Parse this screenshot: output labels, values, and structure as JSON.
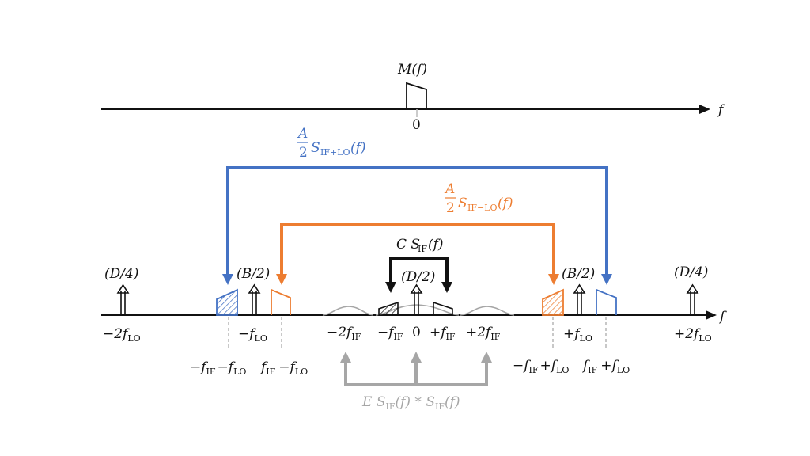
{
  "top_axis": {
    "spectrum_label": "M(f)",
    "zero_label": "0",
    "axis_label": "f"
  },
  "bottom_axis": {
    "axis_label": "f"
  },
  "labels": {
    "blue_coef_num": "A",
    "blue_coef_den": "2",
    "blue_term": "S",
    "blue_sub": "IF+LO",
    "blue_arg": "(f)",
    "orange_coef_num": "A",
    "orange_coef_den": "2",
    "orange_term": "S",
    "orange_sub": "IF−LO",
    "orange_arg": "(f)",
    "black_term": "C S",
    "black_sub": "IF",
    "black_arg": "(f)",
    "gray_term_1": "E S",
    "gray_sub_1": "IF",
    "gray_mid": "(f) * S",
    "gray_sub_2": "IF",
    "gray_arg": "(f)"
  },
  "impulse_labels": {
    "d4_left": "(D/4)",
    "b2_left": "(B/2)",
    "d2_center": "(D/2)",
    "b2_right": "(B/2)",
    "d4_right": "(D/4)"
  },
  "tick_labels": [
    {
      "id": "m2flo",
      "prefix": "−2f",
      "sub": "LO"
    },
    {
      "id": "mflo",
      "prefix": "−f",
      "sub": "LO"
    },
    {
      "id": "m2fif",
      "prefix": "−2f",
      "sub": "IF"
    },
    {
      "id": "mfif",
      "prefix": "−f",
      "sub": "IF"
    },
    {
      "id": "zero",
      "prefix": "0",
      "sub": ""
    },
    {
      "id": "pfif",
      "prefix": "+f",
      "sub": "IF"
    },
    {
      "id": "p2fif",
      "prefix": "+2f",
      "sub": "IF"
    },
    {
      "id": "pflo",
      "prefix": "+f",
      "sub": "LO"
    },
    {
      "id": "p2flo",
      "prefix": "+2f",
      "sub": "LO"
    }
  ],
  "sideband_labels": [
    {
      "id": "mfif-mflo",
      "a": "−f",
      "asub": "IF",
      "b": "−f",
      "bsub": "LO"
    },
    {
      "id": "fif-mflo",
      "a": "f",
      "asub": "IF",
      "b": "−f",
      "bsub": "LO"
    },
    {
      "id": "mfif-pflo",
      "a": "−f",
      "asub": "IF",
      "b": "+f",
      "bsub": "LO"
    },
    {
      "id": "fif-pflo",
      "a": "f",
      "asub": "IF",
      "b": "+f",
      "bsub": "LO"
    }
  ],
  "colors": {
    "blue": "#4472c4",
    "orange": "#ed7d31",
    "gray": "#a6a6a6",
    "black": "#111111"
  }
}
